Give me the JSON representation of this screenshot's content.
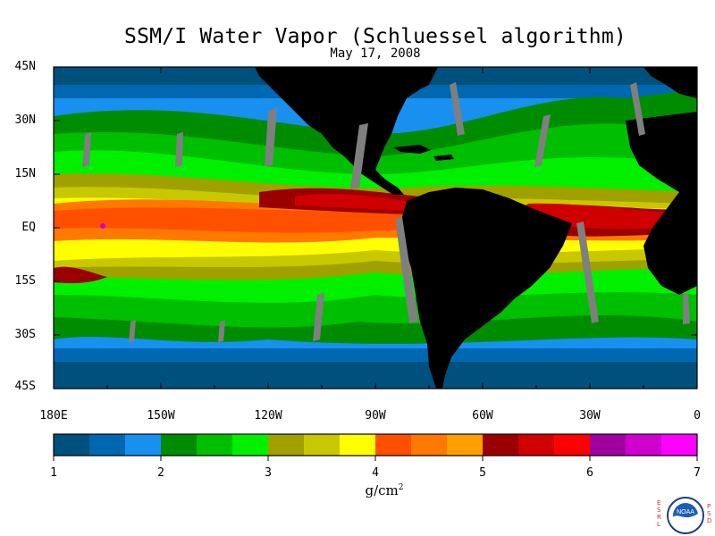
{
  "title": "SSM/I Water Vapor (Schluessel algorithm)",
  "date": "May 17, 2008",
  "lat_labels": [
    "45N",
    "30N",
    "15N",
    "EQ",
    "15S",
    "30S",
    "45S"
  ],
  "lon_labels": [
    "180E",
    "150W",
    "120W",
    "90W",
    "60W",
    "30W",
    "0"
  ],
  "colorbar": {
    "ticks": [
      "1",
      "2",
      "3",
      "4",
      "5",
      "6",
      "7"
    ],
    "units_base": "g/cm",
    "units_exp": "2",
    "colors": [
      "#00507d",
      "#0068b0",
      "#1890f0",
      "#008c00",
      "#00be00",
      "#00f000",
      "#a0a000",
      "#c8c800",
      "#ffff00",
      "#ff5000",
      "#ff7800",
      "#ffa000",
      "#9b0000",
      "#d00000",
      "#ff0000",
      "#a000a0",
      "#d000d0",
      "#ff00ff"
    ]
  },
  "map": {
    "land_color": "#000000",
    "missing_swath_color": "#7f7f7f"
  },
  "logo": {
    "left_letters": [
      "E",
      "S",
      "R",
      "L"
    ],
    "right_letters": [
      "P",
      "S",
      "D"
    ],
    "agency": "NOAA"
  }
}
